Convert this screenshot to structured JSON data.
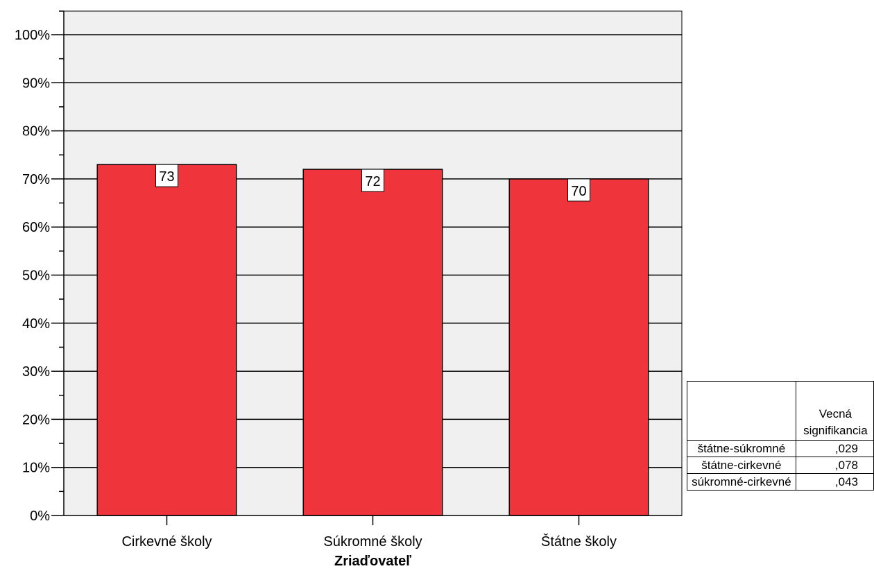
{
  "chart_data": {
    "type": "bar",
    "categories": [
      "Cirkevné školy",
      "Súkromné školy",
      "Štátne školy"
    ],
    "values": [
      73,
      72,
      70
    ],
    "data_labels": [
      "73",
      "72",
      "70"
    ],
    "xlabel": "Zriaďovateľ",
    "ylabel": "",
    "ylim": [
      0,
      100
    ],
    "yticks": [
      "0%",
      "10%",
      "20%",
      "30%",
      "40%",
      "50%",
      "60%",
      "70%",
      "80%",
      "90%",
      "100%"
    ],
    "grid": true,
    "bar_color": "#ef343b",
    "plot_background": "#f0f0f0"
  },
  "table": {
    "header_line1": "Vecná",
    "header_line2": "signifikancia",
    "rows": [
      {
        "label": "štátne-súkromné",
        "value": ",029"
      },
      {
        "label": "štátne-cirkevné",
        "value": ",078"
      },
      {
        "label": "súkromné-cirkevné",
        "value": ",043"
      }
    ]
  }
}
